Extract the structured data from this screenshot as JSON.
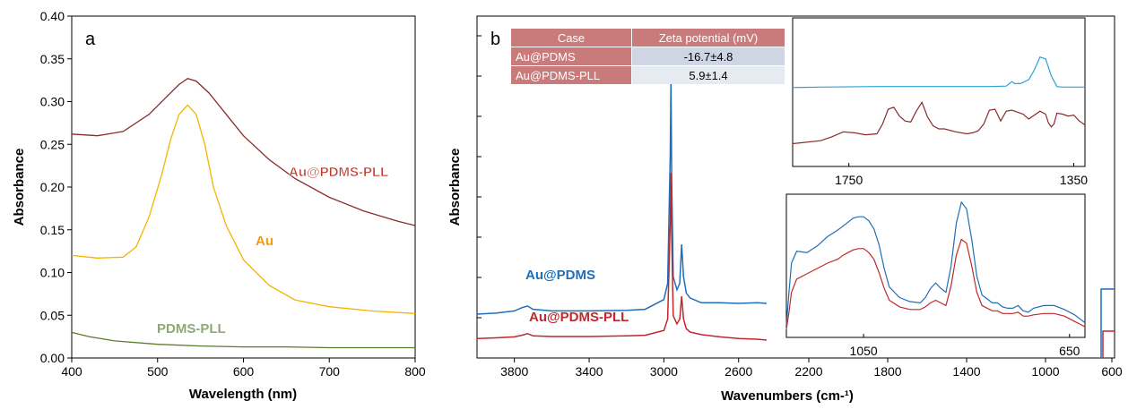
{
  "panels": {
    "a": {
      "letter": "a"
    },
    "b": {
      "letter": "b"
    }
  },
  "colors": {
    "au_pdms_pll_a": "#8b2a2a",
    "au_a": "#f4b400",
    "pdms_pll_a": "#5b7a2e",
    "au_pdms_b": "#1f6fb8",
    "au_pdms_pll_b": "#c0282d",
    "inset_cyan": "#29a3d6",
    "table_header": "#c97b7b",
    "table_row1": "#cfd6e3",
    "table_row2": "#e6eaf1"
  },
  "table": {
    "headers": [
      "Case",
      "Zeta potential (mV)"
    ],
    "rows": [
      [
        "Au@PDMS",
        "-16.7±4.8"
      ],
      [
        "Au@PDMS-PLL",
        "5.9±1.4"
      ]
    ]
  },
  "chart_data": [
    {
      "id": "panel-a",
      "type": "line",
      "xlabel": "Wavelength (nm)",
      "ylabel": "Absorbance",
      "xlim": [
        400,
        800
      ],
      "ylim": [
        0,
        0.4
      ],
      "xticks": [
        "400",
        "500",
        "600",
        "700",
        "800"
      ],
      "yticks": [
        "0.00",
        "0.05",
        "0.10",
        "0.15",
        "0.20",
        "0.25",
        "0.30",
        "0.35",
        "0.40"
      ],
      "grid": false,
      "series": [
        {
          "name": "Au@PDMS-PLL",
          "x": [
            400,
            430,
            460,
            490,
            510,
            525,
            535,
            545,
            560,
            580,
            600,
            630,
            660,
            700,
            740,
            780,
            800
          ],
          "y": [
            0.262,
            0.26,
            0.265,
            0.285,
            0.305,
            0.32,
            0.327,
            0.324,
            0.31,
            0.285,
            0.26,
            0.232,
            0.21,
            0.188,
            0.172,
            0.16,
            0.155
          ]
        },
        {
          "name": "Au",
          "x": [
            400,
            430,
            460,
            475,
            490,
            505,
            515,
            525,
            535,
            545,
            555,
            565,
            580,
            600,
            630,
            660,
            700,
            750,
            800
          ],
          "y": [
            0.12,
            0.117,
            0.118,
            0.13,
            0.165,
            0.215,
            0.255,
            0.285,
            0.296,
            0.285,
            0.25,
            0.2,
            0.155,
            0.115,
            0.085,
            0.068,
            0.06,
            0.055,
            0.052
          ]
        },
        {
          "name": "PDMS-PLL",
          "x": [
            400,
            420,
            450,
            500,
            550,
            600,
            650,
            700,
            750,
            800
          ],
          "y": [
            0.03,
            0.025,
            0.02,
            0.016,
            0.014,
            0.013,
            0.013,
            0.012,
            0.012,
            0.012
          ]
        }
      ]
    },
    {
      "id": "panel-b-main",
      "type": "line",
      "xlabel": "Wavenumbers (cm-¹)",
      "ylabel": "Absorbance",
      "xlim": [
        4000,
        2450
      ],
      "xticks": [
        "3800",
        "3400",
        "3000",
        "2600"
      ],
      "grid": false,
      "series": [
        {
          "name": "Au@PDMS",
          "x": [
            4000,
            3900,
            3800,
            3760,
            3730,
            3700,
            3600,
            3400,
            3200,
            3100,
            3000,
            2980,
            2966,
            2962,
            2958,
            2950,
            2930,
            2915,
            2905,
            2895,
            2880,
            2860,
            2800,
            2700,
            2600,
            2500,
            2450
          ],
          "y": [
            0.135,
            0.138,
            0.145,
            0.155,
            0.16,
            0.15,
            0.145,
            0.145,
            0.147,
            0.15,
            0.18,
            0.23,
            0.63,
            0.86,
            0.55,
            0.25,
            0.21,
            0.23,
            0.35,
            0.25,
            0.2,
            0.185,
            0.17,
            0.17,
            0.168,
            0.17,
            0.168
          ]
        },
        {
          "name": "Au@PDMS-PLL",
          "x": [
            4000,
            3900,
            3800,
            3760,
            3730,
            3700,
            3600,
            3400,
            3200,
            3100,
            3000,
            2980,
            2966,
            2962,
            2958,
            2950,
            2930,
            2915,
            2905,
            2895,
            2880,
            2860,
            2800,
            2700,
            2600,
            2500,
            2450
          ],
          "y": [
            0.06,
            0.062,
            0.065,
            0.07,
            0.075,
            0.068,
            0.066,
            0.066,
            0.068,
            0.07,
            0.085,
            0.12,
            0.42,
            0.57,
            0.38,
            0.13,
            0.105,
            0.12,
            0.19,
            0.12,
            0.09,
            0.08,
            0.072,
            0.065,
            0.06,
            0.058,
            0.055
          ]
        }
      ]
    },
    {
      "id": "panel-b-inset-top",
      "type": "line",
      "xlim": [
        1850,
        1330
      ],
      "xticks": [
        "1750",
        "1350"
      ],
      "series": [
        {
          "x": [
            1850,
            1800,
            1700,
            1600,
            1500,
            1470,
            1460,
            1455,
            1445,
            1430,
            1420,
            1410,
            1400,
            1390,
            1380,
            1370,
            1330
          ],
          "y": [
            0.62,
            0.625,
            0.63,
            0.63,
            0.63,
            0.635,
            0.68,
            0.66,
            0.66,
            0.7,
            0.8,
            0.93,
            0.91,
            0.74,
            0.63,
            0.625,
            0.625
          ]
        },
        {
          "x": [
            1850,
            1800,
            1780,
            1760,
            1740,
            1720,
            1700,
            1690,
            1680,
            1670,
            1660,
            1650,
            1640,
            1630,
            1620,
            1610,
            1600,
            1590,
            1580,
            1560,
            1540,
            1530,
            1520,
            1510,
            1500,
            1490,
            1480,
            1470,
            1460,
            1450,
            1440,
            1430,
            1420,
            1410,
            1400,
            1395,
            1390,
            1385,
            1380,
            1370,
            1360,
            1350,
            1340,
            1330
          ],
          "y": [
            0.05,
            0.08,
            0.12,
            0.17,
            0.16,
            0.14,
            0.15,
            0.25,
            0.4,
            0.42,
            0.33,
            0.28,
            0.27,
            0.38,
            0.47,
            0.32,
            0.23,
            0.2,
            0.2,
            0.17,
            0.15,
            0.16,
            0.18,
            0.25,
            0.39,
            0.4,
            0.28,
            0.38,
            0.39,
            0.37,
            0.35,
            0.3,
            0.34,
            0.38,
            0.35,
            0.26,
            0.22,
            0.25,
            0.36,
            0.35,
            0.33,
            0.34,
            0.28,
            0.24
          ]
        }
      ]
    },
    {
      "id": "panel-b-inset-bottom",
      "type": "line",
      "xlim": [
        1200,
        620
      ],
      "xticks": [
        "1050",
        "650"
      ],
      "series": [
        {
          "x": [
            1200,
            1195,
            1190,
            1180,
            1160,
            1140,
            1120,
            1100,
            1090,
            1080,
            1070,
            1060,
            1050,
            1040,
            1030,
            1020,
            1010,
            1000,
            980,
            960,
            940,
            930,
            920,
            910,
            900,
            890,
            880,
            870,
            860,
            850,
            840,
            830,
            820,
            800,
            790,
            780,
            770,
            760,
            750,
            740,
            730,
            720,
            700,
            680,
            660,
            650,
            640,
            630,
            620
          ],
          "y": [
            0.05,
            0.3,
            0.52,
            0.61,
            0.6,
            0.65,
            0.72,
            0.77,
            0.8,
            0.83,
            0.86,
            0.87,
            0.87,
            0.84,
            0.78,
            0.66,
            0.48,
            0.34,
            0.26,
            0.23,
            0.22,
            0.26,
            0.33,
            0.37,
            0.33,
            0.3,
            0.5,
            0.82,
            0.98,
            0.93,
            0.7,
            0.42,
            0.28,
            0.22,
            0.22,
            0.19,
            0.18,
            0.18,
            0.2,
            0.16,
            0.15,
            0.18,
            0.2,
            0.2,
            0.17,
            0.15,
            0.13,
            0.1,
            0.07
          ]
        },
        {
          "x": [
            1200,
            1195,
            1190,
            1180,
            1160,
            1140,
            1120,
            1100,
            1090,
            1080,
            1070,
            1060,
            1050,
            1040,
            1030,
            1020,
            1010,
            1000,
            980,
            960,
            940,
            930,
            920,
            910,
            900,
            890,
            880,
            870,
            860,
            850,
            840,
            830,
            820,
            800,
            790,
            780,
            770,
            760,
            750,
            740,
            730,
            720,
            700,
            680,
            660,
            650,
            640,
            630,
            620
          ],
          "y": [
            0.02,
            0.15,
            0.3,
            0.4,
            0.44,
            0.48,
            0.52,
            0.55,
            0.58,
            0.6,
            0.62,
            0.63,
            0.63,
            0.6,
            0.55,
            0.45,
            0.33,
            0.24,
            0.19,
            0.17,
            0.17,
            0.19,
            0.22,
            0.24,
            0.22,
            0.2,
            0.35,
            0.58,
            0.7,
            0.67,
            0.5,
            0.3,
            0.2,
            0.16,
            0.16,
            0.14,
            0.14,
            0.14,
            0.15,
            0.12,
            0.12,
            0.13,
            0.14,
            0.14,
            0.12,
            0.1,
            0.08,
            0.06,
            0.04
          ]
        }
      ]
    },
    {
      "id": "panel-b-axis-extra",
      "type": "line",
      "xticks": [
        "2200",
        "1800",
        "1400",
        "1000",
        "600"
      ]
    }
  ]
}
